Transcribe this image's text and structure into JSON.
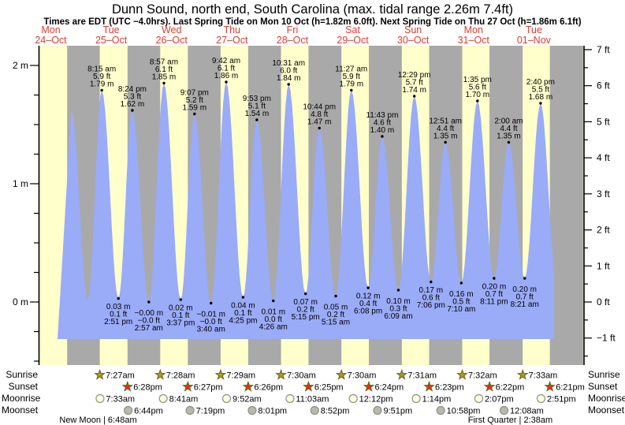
{
  "title": "Dunn Sound, north end, South Carolina (max. tidal range 2.26m 7.4ft)",
  "subtitle": "Times are EDT (UTC −4.0hrs). Last Spring Tide on Mon 10 Oct (h=1.82m 6.0ft). Next Spring Tide on Thu 27 Oct (h=1.86m 6.1ft)",
  "days": [
    {
      "name": "Mon",
      "date": "24–Oct"
    },
    {
      "name": "Tue",
      "date": "25–Oct"
    },
    {
      "name": "Wed",
      "date": "26–Oct"
    },
    {
      "name": "Thu",
      "date": "27–Oct"
    },
    {
      "name": "Fri",
      "date": "28–Oct"
    },
    {
      "name": "Sat",
      "date": "29–Oct"
    },
    {
      "name": "Sun",
      "date": "30–Oct"
    },
    {
      "name": "Mon",
      "date": "31–Oct"
    },
    {
      "name": "Tue",
      "date": "01–Nov"
    }
  ],
  "axes": {
    "left": {
      "unit": "m",
      "major": [
        {
          "label": "2 m",
          "value": 2
        },
        {
          "label": "1 m",
          "value": 1
        },
        {
          "label": "0 m",
          "value": 0
        }
      ]
    },
    "right": {
      "unit": "ft",
      "major": [
        {
          "label": "7 ft",
          "value": 7
        },
        {
          "label": "6 ft",
          "value": 6
        },
        {
          "label": "5 ft",
          "value": 5
        },
        {
          "label": "4 ft",
          "value": 4
        },
        {
          "label": "3 ft",
          "value": 3
        },
        {
          "label": "2 ft",
          "value": 2
        },
        {
          "label": "1 ft",
          "value": 1
        },
        {
          "label": "0 ft",
          "value": 0
        },
        {
          "label": "−1 ft",
          "value": -1
        }
      ]
    }
  },
  "chart_data": {
    "type": "area",
    "title": "Tide height curve, Mon 24 Oct – Tue 01 Nov",
    "ylim_m": [
      -0.55,
      2.17
    ],
    "grid": false,
    "high_tides": [
      {
        "day": 1,
        "time": "8:15 am",
        "t": 8.25,
        "height_ft": "5.9 ft",
        "height_m": "1.79 m",
        "value_m": 1.79
      },
      {
        "day": 1,
        "time": "8:24 pm",
        "t": 20.4,
        "height_ft": "5.3 ft",
        "height_m": "1.62 m",
        "value_m": 1.62
      },
      {
        "day": 2,
        "time": "8:57 am",
        "t": 8.95,
        "height_ft": "6.1 ft",
        "height_m": "1.85 m",
        "value_m": 1.85
      },
      {
        "day": 2,
        "time": "9:07 pm",
        "t": 21.117,
        "height_ft": "5.2 ft",
        "height_m": "1.59 m",
        "value_m": 1.59
      },
      {
        "day": 3,
        "time": "9:42 am",
        "t": 9.7,
        "height_ft": "6.1 ft",
        "height_m": "1.86 m",
        "value_m": 1.86
      },
      {
        "day": 3,
        "time": "9:53 pm",
        "t": 21.883,
        "height_ft": "5.1 ft",
        "height_m": "1.54 m",
        "value_m": 1.54
      },
      {
        "day": 4,
        "time": "10:31 am",
        "t": 10.517,
        "height_ft": "6.0 ft",
        "height_m": "1.84 m",
        "value_m": 1.84
      },
      {
        "day": 4,
        "time": "10:44 pm",
        "t": 22.733,
        "height_ft": "4.8 ft",
        "height_m": "1.47 m",
        "value_m": 1.47
      },
      {
        "day": 5,
        "time": "11:27 am",
        "t": 11.45,
        "height_ft": "5.9 ft",
        "height_m": "1.79 m",
        "value_m": 1.79
      },
      {
        "day": 5,
        "time": "11:43 pm",
        "t": 23.717,
        "height_ft": "4.6 ft",
        "height_m": "1.40 m",
        "value_m": 1.4
      },
      {
        "day": 6,
        "time": "12:29 pm",
        "t": 12.483,
        "height_ft": "5.7 ft",
        "height_m": "1.74 m",
        "value_m": 1.74
      },
      {
        "day": 7,
        "time": "12:51 am",
        "t": 0.85,
        "height_ft": "4.4 ft",
        "height_m": "1.35 m",
        "value_m": 1.35
      },
      {
        "day": 7,
        "time": "1:35 pm",
        "t": 13.583,
        "height_ft": "5.6 ft",
        "height_m": "1.70 m",
        "value_m": 1.7
      },
      {
        "day": 8,
        "time": "2:00 am",
        "t": 2.0,
        "height_ft": "4.4 ft",
        "height_m": "1.35 m",
        "value_m": 1.35
      },
      {
        "day": 8,
        "time": "2:40 pm",
        "t": 14.667,
        "height_ft": "5.5 ft",
        "height_m": "1.68 m",
        "value_m": 1.68
      }
    ],
    "low_tides": [
      {
        "day": 1,
        "time": "2:51 pm",
        "t": 14.85,
        "height_ft": "0.1 ft",
        "height_m": "0.03 m",
        "value_m": 0.03
      },
      {
        "day": 2,
        "time": "2:57 am",
        "t": 2.95,
        "height_ft": "−0.0 ft",
        "height_m": "−0.00 m",
        "value_m": 0.0
      },
      {
        "day": 2,
        "time": "3:37 pm",
        "t": 15.617,
        "height_ft": "0.1 ft",
        "height_m": "0.02 m",
        "value_m": 0.02
      },
      {
        "day": 3,
        "time": "3:40 am",
        "t": 3.667,
        "height_ft": "−0.0 ft",
        "height_m": "−0.01 m",
        "value_m": -0.01
      },
      {
        "day": 3,
        "time": "4:25 pm",
        "t": 16.417,
        "height_ft": "0.1 ft",
        "height_m": "0.04 m",
        "value_m": 0.04
      },
      {
        "day": 4,
        "time": "4:26 am",
        "t": 4.433,
        "height_ft": "0.0 ft",
        "height_m": "0.01 m",
        "value_m": 0.01
      },
      {
        "day": 4,
        "time": "5:15 pm",
        "t": 17.25,
        "height_ft": "0.2 ft",
        "height_m": "0.07 m",
        "value_m": 0.07
      },
      {
        "day": 5,
        "time": "5:15 am",
        "t": 5.25,
        "height_ft": "0.2 ft",
        "height_m": "0.05 m",
        "value_m": 0.05
      },
      {
        "day": 5,
        "time": "6:08 pm",
        "t": 18.133,
        "height_ft": "0.4 ft",
        "height_m": "0.12 m",
        "value_m": 0.12
      },
      {
        "day": 6,
        "time": "6:09 am",
        "t": 6.15,
        "height_ft": "0.3 ft",
        "height_m": "0.10 m",
        "value_m": 0.1
      },
      {
        "day": 6,
        "time": "7:06 pm",
        "t": 19.1,
        "height_ft": "0.6 ft",
        "height_m": "0.17 m",
        "value_m": 0.17
      },
      {
        "day": 7,
        "time": "7:10 am",
        "t": 7.167,
        "height_ft": "0.5 ft",
        "height_m": "0.16 m",
        "value_m": 0.16
      },
      {
        "day": 7,
        "time": "8:11 pm",
        "t": 20.183,
        "height_ft": "0.7 ft",
        "height_m": "0.20 m",
        "value_m": 0.2
      },
      {
        "day": 8,
        "time": "8:21 am",
        "t": 8.35,
        "height_ft": "0.7 ft",
        "height_m": "0.20 m",
        "value_m": 0.2
      }
    ],
    "unlabeled_extremes": [
      {
        "day": 0,
        "t": 20.1,
        "value_m": 1.62
      },
      {
        "day": 1,
        "t": 2.75,
        "value_m": 0.02
      },
      {
        "day": 8,
        "t": 20.9,
        "value_m": 0.22
      }
    ]
  },
  "astro": {
    "row_labels": [
      "Sunrise",
      "Sunset",
      "Moonrise",
      "Moonset"
    ],
    "rows": [
      {
        "label": "Sunrise",
        "icon": "sunrise-star-icon",
        "entries": [
          {
            "day": 1,
            "time": "7:27am",
            "t": 7.45
          },
          {
            "day": 2,
            "time": "7:28am",
            "t": 7.467
          },
          {
            "day": 3,
            "time": "7:29am",
            "t": 7.483
          },
          {
            "day": 4,
            "time": "7:30am",
            "t": 7.5
          },
          {
            "day": 5,
            "time": "7:30am",
            "t": 7.5
          },
          {
            "day": 6,
            "time": "7:31am",
            "t": 7.517
          },
          {
            "day": 7,
            "time": "7:32am",
            "t": 7.533
          },
          {
            "day": 8,
            "time": "7:33am",
            "t": 7.55
          }
        ]
      },
      {
        "label": "Sunset",
        "icon": "sunset-star-icon",
        "entries": [
          {
            "day": 1,
            "time": "6:28pm",
            "t": 18.467
          },
          {
            "day": 2,
            "time": "6:27pm",
            "t": 18.45
          },
          {
            "day": 3,
            "time": "6:26pm",
            "t": 18.433
          },
          {
            "day": 4,
            "time": "6:25pm",
            "t": 18.417
          },
          {
            "day": 5,
            "time": "6:24pm",
            "t": 18.4
          },
          {
            "day": 6,
            "time": "6:23pm",
            "t": 18.383
          },
          {
            "day": 7,
            "time": "6:22pm",
            "t": 18.367
          },
          {
            "day": 8,
            "time": "6:21pm",
            "t": 18.35
          }
        ]
      },
      {
        "label": "Moonrise",
        "icon": "moonrise-icon",
        "entries": [
          {
            "day": 1,
            "time": "7:33am",
            "t": 7.55
          },
          {
            "day": 2,
            "time": "8:41am",
            "t": 8.683
          },
          {
            "day": 3,
            "time": "9:52am",
            "t": 9.867
          },
          {
            "day": 4,
            "time": "11:03am",
            "t": 11.05
          },
          {
            "day": 5,
            "time": "12:12pm",
            "t": 12.2
          },
          {
            "day": 6,
            "time": "1:14pm",
            "t": 13.233
          },
          {
            "day": 7,
            "time": "2:07pm",
            "t": 14.117
          },
          {
            "day": 8,
            "time": "2:51pm",
            "t": 14.85
          }
        ]
      },
      {
        "label": "Moonset",
        "icon": "moonset-icon",
        "entries": [
          {
            "day": 1,
            "time": "6:44pm",
            "t": 18.733
          },
          {
            "day": 2,
            "time": "7:19pm",
            "t": 19.317
          },
          {
            "day": 3,
            "time": "8:01pm",
            "t": 20.017
          },
          {
            "day": 4,
            "time": "8:52pm",
            "t": 20.867
          },
          {
            "day": 5,
            "time": "9:51pm",
            "t": 21.85
          },
          {
            "day": 6,
            "time": "10:58pm",
            "t": 22.967
          },
          {
            "day": 8,
            "time": "12:08am",
            "t": 0.133
          }
        ]
      }
    ],
    "moon_phases": [
      {
        "label": "New Moon | 6:48am",
        "day": 1,
        "t": 6.8
      },
      {
        "label": "First Quarter | 2:38am",
        "day": 8,
        "t": 2.633
      }
    ]
  },
  "colors": {
    "day_stripe": "#ffffcc",
    "night_stripe": "#a9a9a9",
    "tide_fill": "#9aabf8",
    "date_red": "#e23b2f",
    "axis_black": "#000000",
    "sunrise_star": "#a89a2d",
    "star_outline": "#6b6414",
    "sunset_star": "#e53012",
    "moonrise_fill": "#ffffdd",
    "moonset_fill": "#b9b9aa",
    "moon_outline": "#90908a"
  }
}
